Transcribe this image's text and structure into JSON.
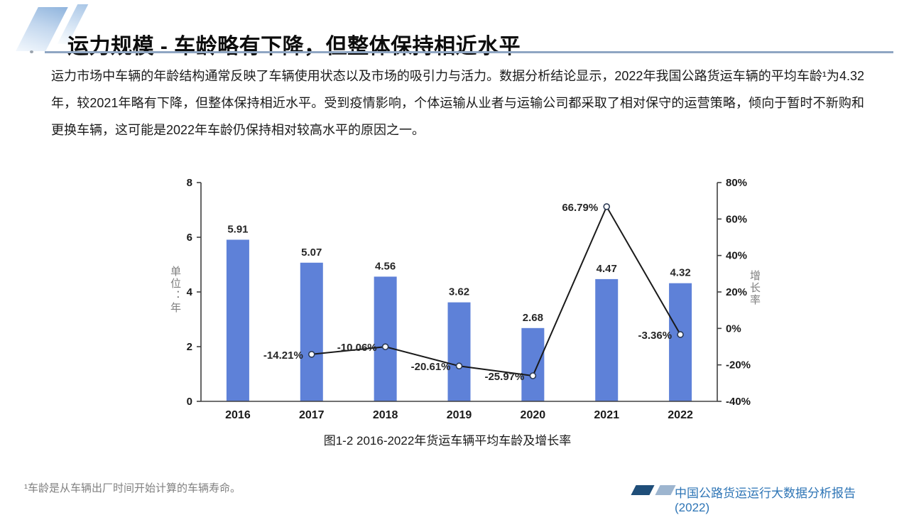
{
  "slide": {
    "title": "运力规模 - 车龄略有下降，但整体保持相近水平",
    "paragraph": "运力市场中车辆的年龄结构通常反映了车辆使用状态以及市场的吸引力与活力。数据分析结论显示，2022年我国公路货运车辆的平均车龄¹为4.32年，较2021年略有下降，但整体保持相近水平。受到疫情影响，个体运输从业者与运输公司都采取了相对保守的运营策略，倾向于暂时不新购和更换车辆，这可能是2022年车龄仍保持相对较高水平的原因之一。",
    "caption": "图1-2 2016-2022年货运车辆平均车龄及增长率",
    "footnote": "¹车龄是从车辆出厂时间开始计算的车辆寿命。",
    "footer_text": "中国公路货运运行大数据分析报告(2022)"
  },
  "colors": {
    "bar": "#5E81D8",
    "line": "#1a1a1a",
    "marker_fill": "#ffffff",
    "axis": "#404040",
    "data_label": "#262626",
    "tick_label": "#1a1a1a",
    "underline": "#8FA6C3",
    "footer_blue": "#2E75B6"
  },
  "chart_data": {
    "type": "bar",
    "subtype": "bar+line combo, dual axis",
    "title": "图1-2 2016-2022年货运车辆平均车龄及增长率",
    "categories": [
      "2016",
      "2017",
      "2018",
      "2019",
      "2020",
      "2021",
      "2022"
    ],
    "series": [
      {
        "name": "平均车龄",
        "type": "bar",
        "axis": "left",
        "values": [
          5.91,
          5.07,
          4.56,
          3.62,
          2.68,
          4.47,
          4.32
        ]
      },
      {
        "name": "增长率",
        "type": "line",
        "axis": "right",
        "values": [
          null,
          -14.21,
          -10.06,
          -20.61,
          -25.97,
          66.79,
          -3.36
        ]
      }
    ],
    "left_axis": {
      "label": "单位：年",
      "ticks": [
        0,
        2,
        4,
        6,
        8
      ],
      "range": [
        0,
        8
      ]
    },
    "right_axis": {
      "label": "增长率",
      "ticks": [
        -40,
        -20,
        0,
        20,
        40,
        60,
        80
      ],
      "range": [
        -40,
        80
      ],
      "suffix": "%"
    },
    "grid": false,
    "legend": "none"
  }
}
